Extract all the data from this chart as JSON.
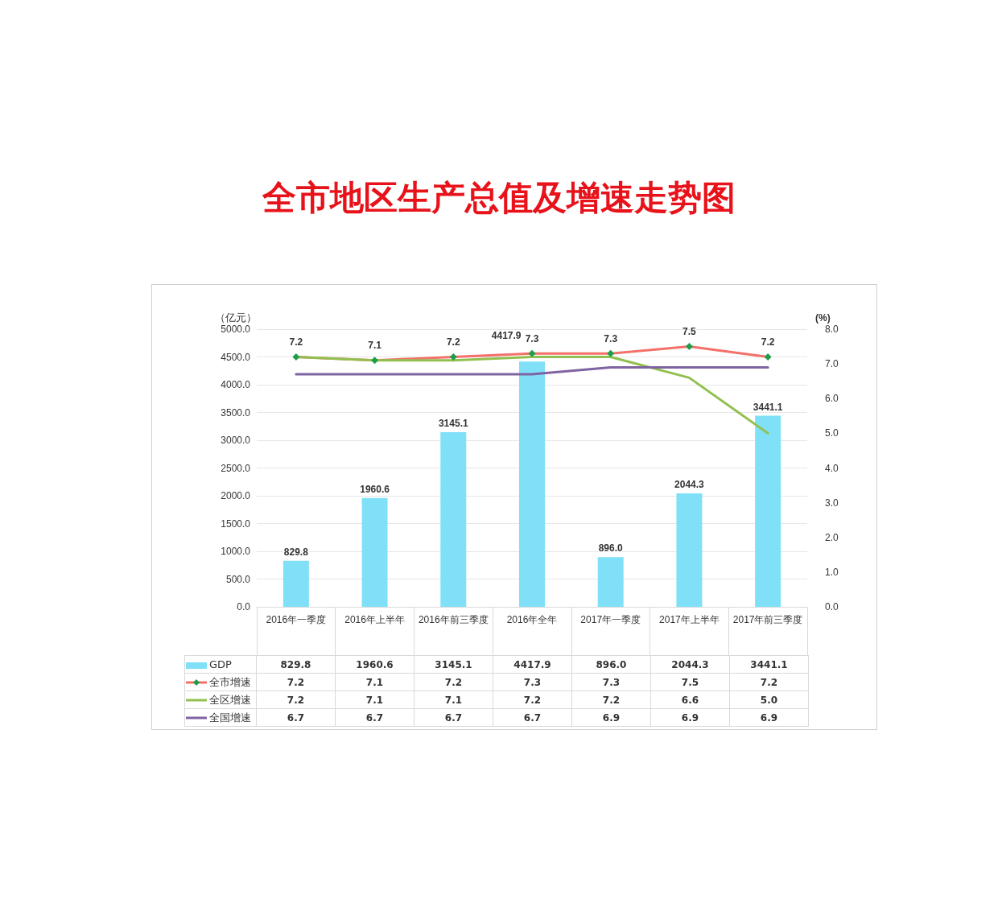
{
  "chart_data": {
    "type": "bar",
    "title": "全市地区生产总值及增速走势图",
    "ylabel": "（亿元）",
    "y2label": "(%)",
    "categories": [
      "2016年一季度",
      "2016年上半年",
      "2016年前三季度",
      "2016年全年",
      "2017年一季度",
      "2017年上半年",
      "2017年前三季度"
    ],
    "series": [
      {
        "name": "GDP",
        "color": "#7fe0f8",
        "values": [
          829.8,
          1960.6,
          3145.1,
          4417.9,
          896,
          2044.3,
          3441.1
        ],
        "value_labels": [
          "829.8",
          "1960.6",
          "3145.1",
          "4417.9",
          "896.0",
          "2044.3",
          "3441.1"
        ]
      },
      {
        "name": "全市增速",
        "type": "line",
        "axis": "y2",
        "color": "#f4706a",
        "marker": "diamond",
        "values": [
          7.2,
          7.1,
          7.2,
          7.3,
          7.3,
          7.5,
          7.2
        ],
        "value_labels": [
          "7.2",
          "7.1",
          "7.2",
          "7.3",
          "7.3",
          "7.5",
          "7.2"
        ]
      },
      {
        "name": "全区增速",
        "type": "line",
        "axis": "y2",
        "color": "#92c050",
        "marker": "none",
        "values": [
          7.2,
          7.1,
          7.1,
          7.2,
          7.2,
          6.6,
          5.0
        ],
        "value_labels": [
          "7.2",
          "7.1",
          "7.1",
          "7.2",
          "7.2",
          "6.6",
          "5.0"
        ]
      },
      {
        "name": "全国增速",
        "type": "line",
        "axis": "y2",
        "color": "#8064a2",
        "marker": "none",
        "values": [
          6.7,
          6.7,
          6.7,
          6.7,
          6.9,
          6.9,
          6.9
        ],
        "value_labels": [
          "6.7",
          "6.7",
          "6.7",
          "6.7",
          "6.9",
          "6.9",
          "6.9"
        ]
      }
    ],
    "ylim": [
      0,
      5000
    ],
    "yticks": [
      {
        "value": 0,
        "label": "0.0"
      },
      {
        "value": 500,
        "label": "500.0"
      },
      {
        "value": 1000,
        "label": "1000.0"
      },
      {
        "value": 1500,
        "label": "1500.0"
      },
      {
        "value": 2000,
        "label": "2000.0"
      },
      {
        "value": 2500,
        "label": "2500.0"
      },
      {
        "value": 3000,
        "label": "3000.0"
      },
      {
        "value": 3500,
        "label": "3500.0"
      },
      {
        "value": 4000,
        "label": "4000.0"
      },
      {
        "value": 4500,
        "label": "4500.0"
      },
      {
        "value": 5000,
        "label": "5000.0"
      }
    ],
    "y2lim": [
      0,
      8
    ],
    "y2ticks": [
      {
        "value": 0,
        "label": "0.0"
      },
      {
        "value": 1,
        "label": "1.0"
      },
      {
        "value": 2,
        "label": "2.0"
      },
      {
        "value": 3,
        "label": "3.0"
      },
      {
        "value": 4,
        "label": "4.0"
      },
      {
        "value": 5,
        "label": "5.0"
      },
      {
        "value": 6,
        "label": "6.0"
      },
      {
        "value": 7,
        "label": "7.0"
      },
      {
        "value": 8,
        "label": "8.0"
      }
    ],
    "grid": "y",
    "legend": "bottom"
  }
}
